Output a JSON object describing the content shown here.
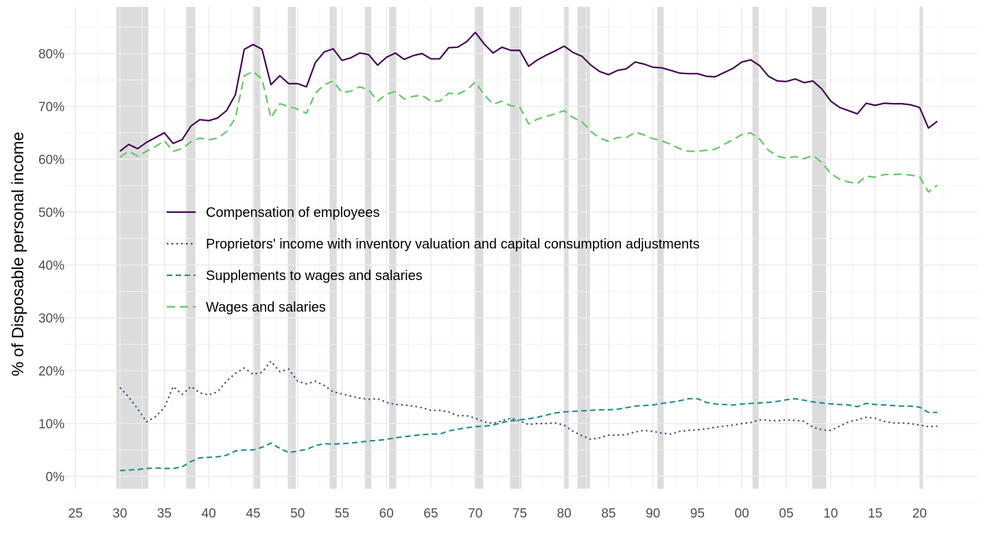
{
  "chart_data": {
    "type": "line",
    "title": "",
    "xlabel": "",
    "ylabel": "% of Disposable personal income",
    "x_range": [
      1925,
      2030
    ],
    "ylim": [
      0,
      0.85
    ],
    "grid": true,
    "legend_position": "inside-center-left",
    "x_tick_values": [
      1925,
      1930,
      1935,
      1940,
      1945,
      1950,
      1955,
      1960,
      1965,
      1970,
      1975,
      1980,
      1985,
      1990,
      1995,
      2000,
      2005,
      2010,
      2015,
      2020
    ],
    "x_tick_labels": [
      "25",
      "30",
      "35",
      "40",
      "45",
      "50",
      "55",
      "60",
      "65",
      "70",
      "75",
      "80",
      "85",
      "90",
      "95",
      "00",
      "05",
      "10",
      "15",
      "20"
    ],
    "y_tick_values": [
      0,
      0.1,
      0.2,
      0.3,
      0.4,
      0.5,
      0.6,
      0.7,
      0.8
    ],
    "y_tick_labels": [
      "0%",
      "10%",
      "20%",
      "30%",
      "40%",
      "50%",
      "60%",
      "70%",
      "80%"
    ],
    "recessions": [
      [
        1929.6,
        1933.2
      ],
      [
        1937.4,
        1938.5
      ],
      [
        1945.1,
        1945.8
      ],
      [
        1948.9,
        1949.8
      ],
      [
        1953.6,
        1954.4
      ],
      [
        1957.6,
        1958.3
      ],
      [
        1960.3,
        1961.1
      ],
      [
        1969.9,
        1970.9
      ],
      [
        1973.9,
        1975.2
      ],
      [
        1980.0,
        1980.5
      ],
      [
        1981.5,
        1982.9
      ],
      [
        1990.5,
        1991.2
      ],
      [
        2001.2,
        2001.9
      ],
      [
        2007.9,
        2009.5
      ],
      [
        2020.0,
        2020.3
      ]
    ],
    "years": [
      1930,
      1931,
      1932,
      1933,
      1934,
      1935,
      1936,
      1937,
      1938,
      1939,
      1940,
      1941,
      1942,
      1943,
      1944,
      1945,
      1946,
      1947,
      1948,
      1949,
      1950,
      1951,
      1952,
      1953,
      1954,
      1955,
      1956,
      1957,
      1958,
      1959,
      1960,
      1961,
      1962,
      1963,
      1964,
      1965,
      1966,
      1967,
      1968,
      1969,
      1970,
      1971,
      1972,
      1973,
      1974,
      1975,
      1976,
      1977,
      1978,
      1979,
      1980,
      1981,
      1982,
      1983,
      1984,
      1985,
      1986,
      1987,
      1988,
      1989,
      1990,
      1991,
      1992,
      1993,
      1994,
      1995,
      1996,
      1997,
      1998,
      1999,
      2000,
      2001,
      2002,
      2003,
      2004,
      2005,
      2006,
      2007,
      2008,
      2009,
      2010,
      2011,
      2012,
      2013,
      2014,
      2015,
      2016,
      2017,
      2018,
      2019,
      2020,
      2021,
      2022
    ],
    "series": [
      {
        "name": "Compensation of employees",
        "color": "#440154",
        "dash": "solid",
        "values": [
          0.615,
          0.628,
          0.62,
          0.632,
          0.641,
          0.65,
          0.63,
          0.637,
          0.663,
          0.675,
          0.673,
          0.678,
          0.692,
          0.722,
          0.808,
          0.817,
          0.808,
          0.741,
          0.758,
          0.743,
          0.743,
          0.737,
          0.783,
          0.803,
          0.809,
          0.787,
          0.792,
          0.801,
          0.798,
          0.778,
          0.793,
          0.801,
          0.789,
          0.796,
          0.8,
          0.79,
          0.79,
          0.811,
          0.812,
          0.822,
          0.84,
          0.818,
          0.801,
          0.812,
          0.806,
          0.806,
          0.776,
          0.788,
          0.797,
          0.805,
          0.814,
          0.802,
          0.795,
          0.778,
          0.766,
          0.76,
          0.768,
          0.771,
          0.784,
          0.78,
          0.774,
          0.773,
          0.768,
          0.763,
          0.762,
          0.762,
          0.757,
          0.756,
          0.764,
          0.772,
          0.784,
          0.788,
          0.777,
          0.757,
          0.748,
          0.747,
          0.752,
          0.745,
          0.748,
          0.733,
          0.71,
          0.698,
          0.692,
          0.686,
          0.706,
          0.702,
          0.706,
          0.705,
          0.705,
          0.703,
          0.698,
          0.659,
          0.672
        ]
      },
      {
        "name": "Proprietors' income with inventory valuation and capital consumption adjustments",
        "color": "#3b528b",
        "dash": "dotted",
        "values": [
          0.168,
          0.15,
          0.128,
          0.103,
          0.113,
          0.13,
          0.17,
          0.155,
          0.17,
          0.158,
          0.154,
          0.16,
          0.18,
          0.195,
          0.205,
          0.193,
          0.197,
          0.218,
          0.198,
          0.203,
          0.18,
          0.175,
          0.18,
          0.172,
          0.16,
          0.156,
          0.152,
          0.148,
          0.146,
          0.147,
          0.14,
          0.136,
          0.135,
          0.133,
          0.13,
          0.125,
          0.125,
          0.122,
          0.115,
          0.115,
          0.11,
          0.103,
          0.1,
          0.105,
          0.11,
          0.105,
          0.098,
          0.1,
          0.1,
          0.101,
          0.097,
          0.085,
          0.077,
          0.07,
          0.073,
          0.078,
          0.078,
          0.079,
          0.084,
          0.087,
          0.085,
          0.082,
          0.08,
          0.085,
          0.087,
          0.088,
          0.09,
          0.093,
          0.095,
          0.097,
          0.1,
          0.102,
          0.107,
          0.106,
          0.105,
          0.107,
          0.106,
          0.104,
          0.093,
          0.088,
          0.087,
          0.095,
          0.103,
          0.107,
          0.112,
          0.11,
          0.104,
          0.101,
          0.101,
          0.1,
          0.097,
          0.094,
          0.095
        ]
      },
      {
        "name": "Supplements to wages and salaries",
        "color": "#21908c",
        "dash": "dashed",
        "values": [
          0.011,
          0.012,
          0.013,
          0.015,
          0.016,
          0.015,
          0.015,
          0.018,
          0.028,
          0.035,
          0.036,
          0.037,
          0.04,
          0.048,
          0.05,
          0.05,
          0.055,
          0.063,
          0.053,
          0.045,
          0.048,
          0.051,
          0.058,
          0.062,
          0.061,
          0.062,
          0.063,
          0.065,
          0.067,
          0.068,
          0.07,
          0.073,
          0.075,
          0.077,
          0.079,
          0.08,
          0.08,
          0.086,
          0.089,
          0.092,
          0.094,
          0.095,
          0.097,
          0.102,
          0.105,
          0.107,
          0.109,
          0.112,
          0.116,
          0.12,
          0.122,
          0.123,
          0.124,
          0.125,
          0.126,
          0.126,
          0.127,
          0.13,
          0.133,
          0.134,
          0.135,
          0.138,
          0.14,
          0.143,
          0.147,
          0.147,
          0.14,
          0.137,
          0.136,
          0.135,
          0.137,
          0.138,
          0.139,
          0.14,
          0.142,
          0.145,
          0.147,
          0.144,
          0.141,
          0.139,
          0.137,
          0.136,
          0.135,
          0.132,
          0.138,
          0.136,
          0.135,
          0.134,
          0.133,
          0.133,
          0.131,
          0.121,
          0.121
        ]
      },
      {
        "name": "Wages and salaries",
        "color": "#5ec962",
        "dash": "longdash",
        "values": [
          0.604,
          0.615,
          0.606,
          0.615,
          0.624,
          0.635,
          0.615,
          0.62,
          0.633,
          0.64,
          0.637,
          0.64,
          0.652,
          0.678,
          0.758,
          0.766,
          0.752,
          0.678,
          0.705,
          0.7,
          0.695,
          0.687,
          0.725,
          0.741,
          0.748,
          0.726,
          0.729,
          0.737,
          0.731,
          0.71,
          0.723,
          0.728,
          0.714,
          0.719,
          0.721,
          0.71,
          0.71,
          0.725,
          0.723,
          0.731,
          0.746,
          0.722,
          0.704,
          0.71,
          0.701,
          0.699,
          0.667,
          0.676,
          0.681,
          0.686,
          0.692,
          0.679,
          0.671,
          0.653,
          0.64,
          0.634,
          0.641,
          0.641,
          0.651,
          0.646,
          0.639,
          0.635,
          0.628,
          0.62,
          0.615,
          0.615,
          0.617,
          0.619,
          0.628,
          0.637,
          0.647,
          0.65,
          0.638,
          0.617,
          0.606,
          0.602,
          0.605,
          0.601,
          0.607,
          0.594,
          0.573,
          0.562,
          0.557,
          0.554,
          0.568,
          0.566,
          0.571,
          0.571,
          0.572,
          0.57,
          0.567,
          0.538,
          0.551
        ]
      }
    ]
  }
}
